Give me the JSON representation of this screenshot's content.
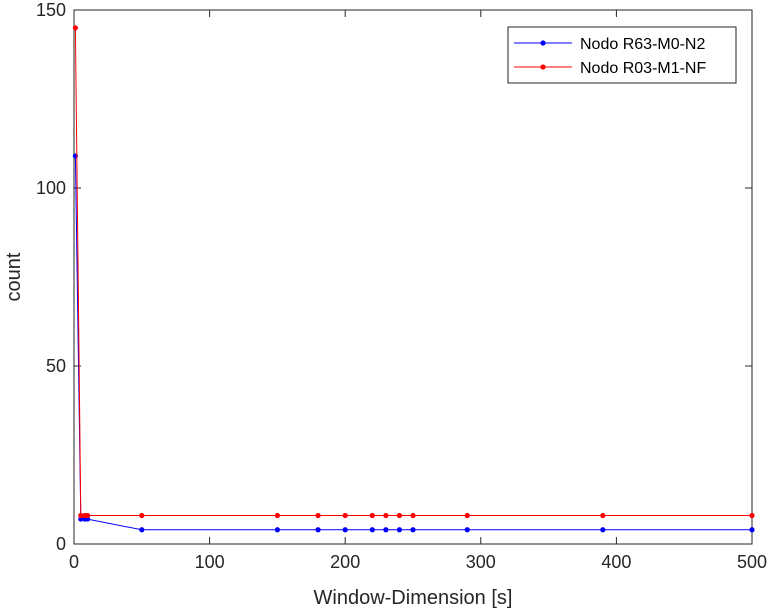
{
  "chart_data": {
    "type": "line",
    "xlabel": "Window-Dimension [s]",
    "ylabel": "count",
    "xlim": [
      0,
      500
    ],
    "ylim": [
      0,
      150
    ],
    "xticks": [
      0,
      100,
      200,
      300,
      400,
      500
    ],
    "yticks": [
      0,
      50,
      100,
      150
    ],
    "grid": false,
    "legend_position": "top-right",
    "series": [
      {
        "name": "Nodo R63-M0-N2",
        "color": "#0000ff",
        "x": [
          1,
          5,
          8,
          10,
          50,
          150,
          180,
          200,
          220,
          230,
          240,
          250,
          290,
          390,
          500
        ],
        "y": [
          109,
          7,
          7,
          7,
          4,
          4,
          4,
          4,
          4,
          4,
          4,
          4,
          4,
          4,
          4
        ]
      },
      {
        "name": "Nodo R03-M1-NF",
        "color": "#ff0000",
        "x": [
          1,
          5,
          8,
          10,
          50,
          150,
          180,
          200,
          220,
          230,
          240,
          250,
          290,
          390,
          500
        ],
        "y": [
          145,
          8,
          8,
          8,
          8,
          8,
          8,
          8,
          8,
          8,
          8,
          8,
          8,
          8,
          8
        ]
      }
    ]
  }
}
